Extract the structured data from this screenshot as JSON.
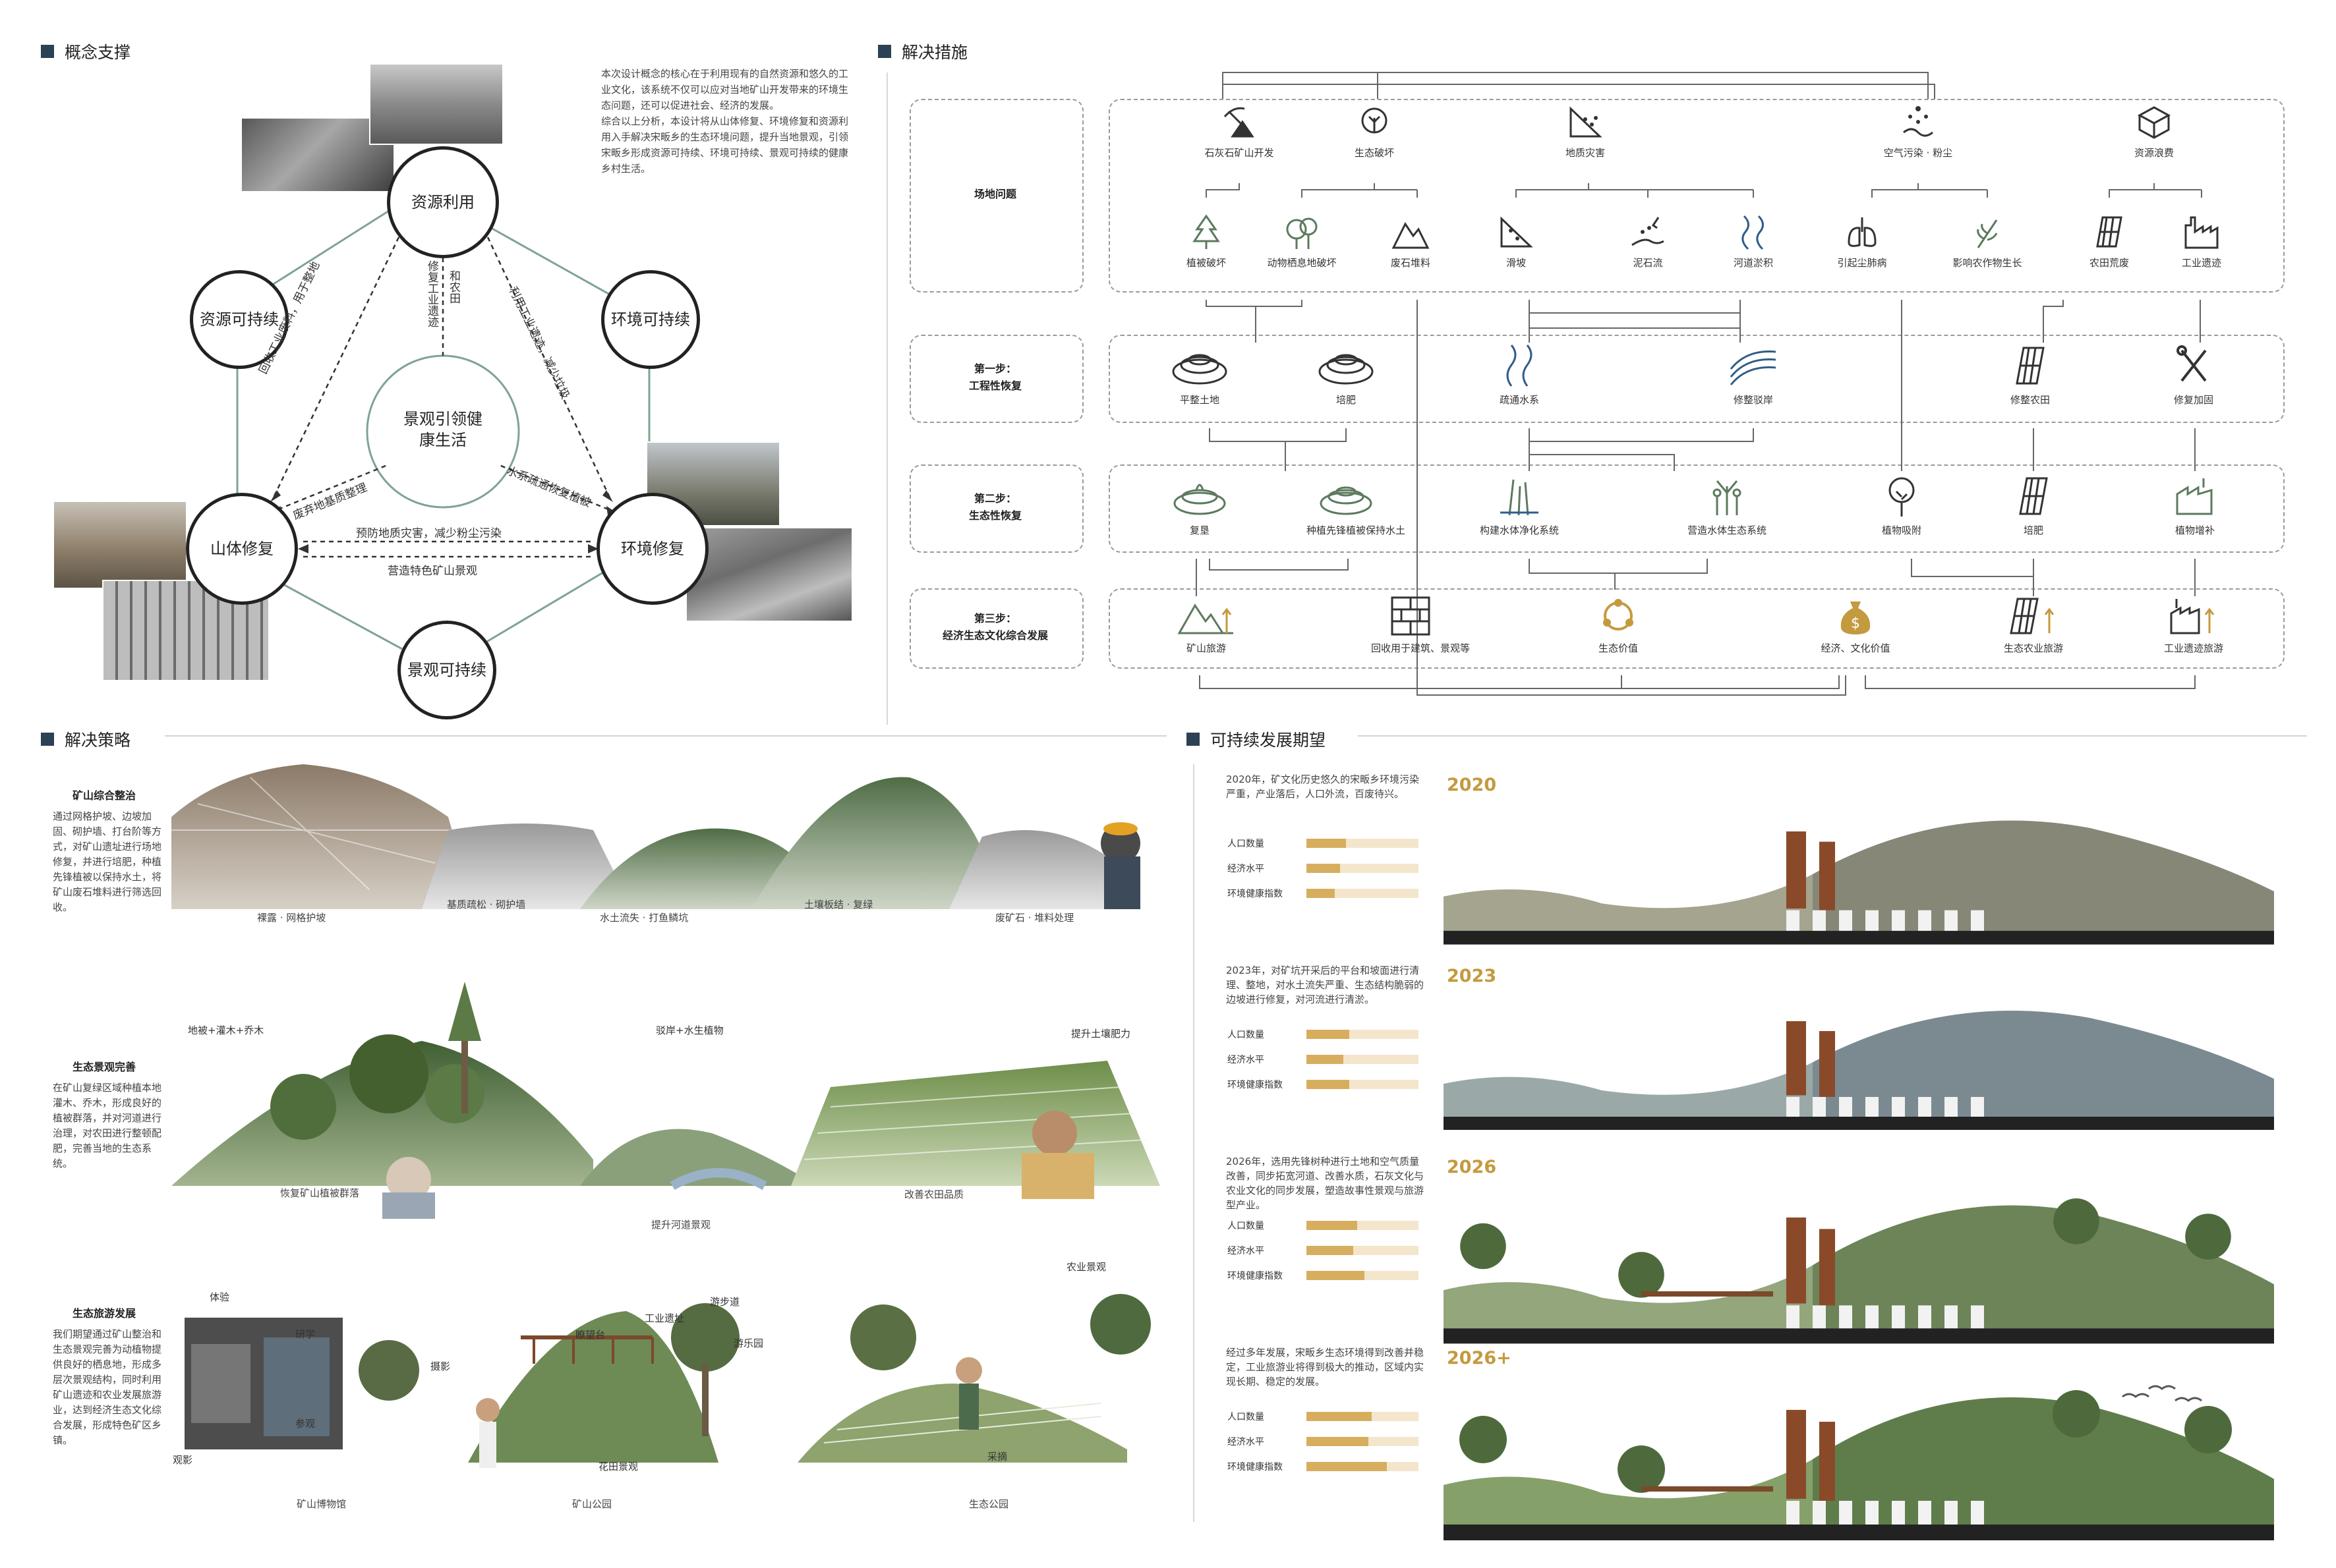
{
  "sections": {
    "concept": "概念支撑",
    "measures": "解决措施",
    "strategy": "解决策略",
    "sustain": "可持续发展期望"
  },
  "concept": {
    "para1": "本次设计概念的核心在于利用现有的自然资源和悠久的工业文化，该系统不仅可以应对当地矿山开发带来的环境生态问题，还可以促进社会、经济的发展。",
    "para2": "综合以上分析，本设计将从山体修复、环境修复和资源利用入手解决宋畈乡的生态环境问题，提升当地景观，引领宋畈乡形成资源可持续、环境可持续、景观可持续的健康乡村生活。",
    "nodes": {
      "resource_use": "资源利用",
      "resource_sus": "资源可持续",
      "env_sus": "环境可持续",
      "center_1": "景观引领健",
      "center_2": "康生活",
      "mountain": "山体修复",
      "env_repair": "环境修复",
      "landscape_sus": "景观可持续"
    },
    "edges": {
      "left_diag": "回收工业废料，用于整地",
      "right_diag": "利用工业遗迹，减少垃圾",
      "center_left": "修复工业遗迹",
      "center_right": "和农田",
      "inner_left": "废弃地基质整理",
      "inner_right": "水系疏通恢复植被",
      "bottom_top": "预防地质灾害，减少粉尘污染",
      "bottom_bot": "营造特色矿山景观"
    }
  },
  "measures": {
    "rows": [
      {
        "label1": "场地问题",
        "label2": ""
      },
      {
        "label1": "第一步：",
        "label2": "工程性恢复"
      },
      {
        "label1": "第二步：",
        "label2": "生态性恢复"
      },
      {
        "label1": "第三步：",
        "label2": "经济生态文化综合发展"
      }
    ],
    "problems_top": [
      "石灰石矿山开发",
      "生态破坏",
      "地质灾害",
      "空气污染 · 粉尘",
      "资源浪费"
    ],
    "problems_sub": [
      "植被破坏",
      "动物栖息地破坏",
      "废石堆料",
      "滑坡",
      "泥石流",
      "河道淤积",
      "引起尘肺病",
      "影响农作物生长",
      "农田荒废",
      "工业遗迹"
    ],
    "step1": [
      "平整土地",
      "培肥",
      "疏通水系",
      "修整驳岸",
      "修整农田",
      "修复加固"
    ],
    "step2": [
      "复垦",
      "种植先锋植被保持水土",
      "构建水体净化系统",
      "营造水体生态系统",
      "植物吸附",
      "培肥",
      "植物增补"
    ],
    "step3": [
      "矿山旅游",
      "回收用于建筑、景观等",
      "生态价值",
      "经济、文化价值",
      "生态农业旅游",
      "工业遗迹旅游"
    ]
  },
  "strategy": {
    "s1_title": "矿山综合整治",
    "s1_text": "通过网格护坡、边坡加固、砌护墙、打台阶等方式，对矿山遗址进行场地修复，并进行培肥，种植先锋植被以保持水土，将矿山废石堆料进行筛选回收。",
    "s1_caps": [
      "裸露 · 网格护坡",
      "基质疏松 · 砌护墙",
      "水土流失 · 打鱼鳞坑",
      "土壤板结 · 复绿",
      "废矿石 · 堆料处理"
    ],
    "s2_title": "生态景观完善",
    "s2_text": "在矿山复绿区域种植本地灌木、乔木，形成良好的植被群落，并对河道进行治理，对农田进行整顿配肥，完善当地的生态系统。",
    "s2_tags": [
      "地被+灌木+乔木",
      "驳岸+水生植物",
      "提升土壤肥力"
    ],
    "s2_caps": [
      "恢复矿山植被群落",
      "提升河道景观",
      "改善农田品质"
    ],
    "s3_title": "生态旅游发展",
    "s3_text": "我们期望通过矿山整治和生态景观完善为动植物提供良好的栖息地，形成多层次景观结构，同时利用矿山遗迹和农业发展旅游业，达到经济生态文化综合发展，形成特色矿区乡镇。",
    "s3_tags": [
      "体验",
      "研学",
      "参观",
      "观影",
      "摄影",
      "瞭望台",
      "工业遗址",
      "游步道",
      "游乐园",
      "花田景观",
      "农业景观",
      "采摘"
    ],
    "s3_caps": [
      "矿山博物馆",
      "矿山公园",
      "生态公园"
    ]
  },
  "timeline": [
    {
      "year": "2020",
      "text": "2020年，矿文化历史悠久的宋畈乡环境污染严重，产业落后，人口外流，百废待兴。",
      "pop": 0.35,
      "eco": 0.3,
      "env": 0.25
    },
    {
      "year": "2023",
      "text": "2023年，对矿坑开采后的平台和坡面进行清理、整地，对水土流失严重、生态结构脆弱的边坡进行修复，对河流进行清淤。",
      "pop": 0.38,
      "eco": 0.33,
      "env": 0.38
    },
    {
      "year": "2026",
      "text": "2026年，选用先锋树种进行土地和空气质量改善，同步拓宽河道、改善水质，石灰文化与农业文化的同步发展，塑造故事性景观与旅游型产业。",
      "pop": 0.45,
      "eco": 0.42,
      "env": 0.52
    },
    {
      "year": "2026+",
      "text": "经过多年发展，宋畈乡生态环境得到改善并稳定，工业旅游业将得到极大的推动，区域内实现长期、稳定的发展。",
      "pop": 0.58,
      "eco": 0.55,
      "env": 0.72
    }
  ],
  "indicators": [
    "人口数量",
    "经济水平",
    "环境健康指数"
  ],
  "colors": {
    "accent": "#c49a3f",
    "title_square": "#2d4156",
    "node_line": "#7fa394",
    "icon_green": "#5c7a5e",
    "icon_blue": "#2f5d8a",
    "icon_gold": "#c49a3f"
  }
}
